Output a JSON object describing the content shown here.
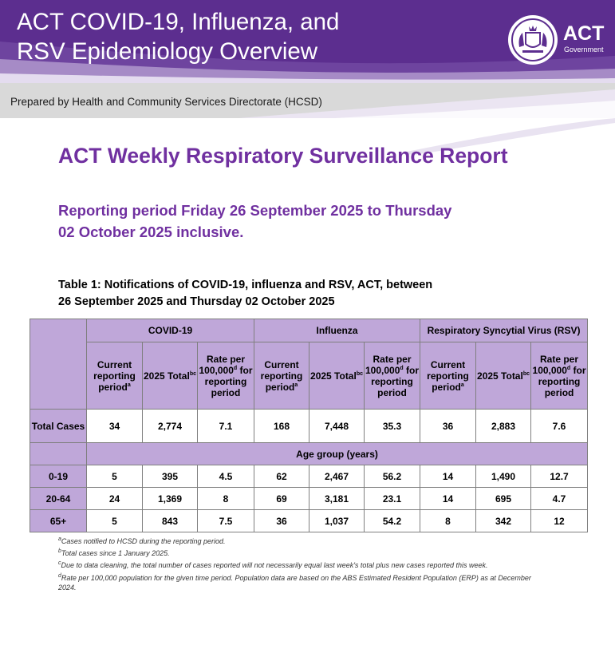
{
  "header": {
    "title_line1": "ACT COVID-19, Influenza, and",
    "title_line2": "RSV Epidemiology Overview",
    "logo_text": "ACT",
    "logo_sub": "Government",
    "prepared_by": "Prepared by Health and Community Services Directorate (HCSD)",
    "colors": {
      "banner": "#5c2e8f",
      "accent": "#7030a0",
      "table_fill": "#bfa7d9"
    }
  },
  "report": {
    "title": "ACT Weekly Respiratory Surveillance Report",
    "period_line1": "Reporting period Friday 26 September 2025 to Thursday",
    "period_line2": "02 October 2025 inclusive."
  },
  "table": {
    "caption_line1": "Table 1: Notifications of COVID-19, influenza and RSV, ACT, between",
    "caption_line2": "26 September 2025 and Thursday 02 October 2025",
    "groups": [
      "COVID-19",
      "Influenza",
      "Respiratory Syncytial Virus (RSV)"
    ],
    "subheaders": {
      "current": "Current reporting period",
      "current_sup": "a",
      "total": "2025 Total",
      "total_sup": "bc",
      "rate_a": "Rate per 100,000",
      "rate_sup": "d",
      "rate_b": "for reporting period"
    },
    "total_label": "Total Cases",
    "total_values": [
      "34",
      "2,774",
      "7.1",
      "168",
      "7,448",
      "35.3",
      "36",
      "2,883",
      "7.6"
    ],
    "age_group_label": "Age group (years)",
    "rows": [
      {
        "label": "0-19",
        "values": [
          "5",
          "395",
          "4.5",
          "62",
          "2,467",
          "56.2",
          "14",
          "1,490",
          "12.7"
        ]
      },
      {
        "label": "20-64",
        "values": [
          "24",
          "1,369",
          "8",
          "69",
          "3,181",
          "23.1",
          "14",
          "695",
          "4.7"
        ]
      },
      {
        "label": "65+",
        "values": [
          "5",
          "843",
          "7.5",
          "36",
          "1,037",
          "54.2",
          "8",
          "342",
          "12"
        ]
      }
    ]
  },
  "footnotes": {
    "a_sup": "a",
    "a": "Cases notified to HCSD during the reporting period.",
    "b_sup": "b",
    "b": "Total cases since 1 January 2025.",
    "c_sup": "c",
    "c": "Due to data cleaning, the total number of cases reported will not necessarily equal last week's total plus new cases reported this week.",
    "d_sup": "d",
    "d": "Rate per 100,000 population for the given time period. Population data are based on the ABS Estimated Resident Population (ERP) as at December 2024."
  }
}
